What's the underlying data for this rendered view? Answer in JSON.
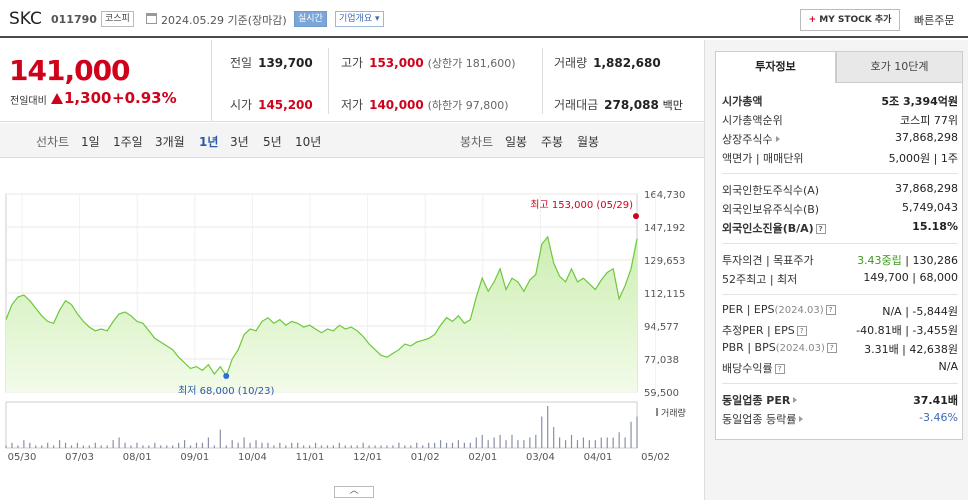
{
  "header": {
    "name": "SKC",
    "code": "011790",
    "market": "코스피",
    "date": "2024.05.29 기준(장마감)",
    "realtime": "실시간",
    "company_info": "기업개요",
    "my_stock": "MY STOCK 추가",
    "quick_order": "빠른주문"
  },
  "price": {
    "current": "141,000",
    "compare_label": "전일대비",
    "change": "1,300",
    "change_pct": "+0.93%"
  },
  "stats": {
    "prev_label": "전일",
    "prev": "139,700",
    "open_label": "시가",
    "open": "145,200",
    "high_label": "고가",
    "high": "153,000",
    "upper_limit": "(상한가 181,600)",
    "low_label": "저가",
    "low": "140,000",
    "lower_limit": "(하한가 97,800)",
    "volume_label": "거래량",
    "volume": "1,882,680",
    "amount_label": "거래대금",
    "amount": "278,088",
    "amount_unit": "백만"
  },
  "periods": {
    "line_label": "선차트",
    "line_items": [
      "1일",
      "1주일",
      "3개월",
      "1년",
      "3년",
      "5년",
      "10년"
    ],
    "active": "1년",
    "candle_label": "봉차트",
    "candle_items": [
      "일봉",
      "주봉",
      "월봉"
    ]
  },
  "chart_data": {
    "type": "area",
    "y_ticks": [
      "164,730",
      "147,192",
      "129,653",
      "112,115",
      "94,577",
      "77,038",
      "59,500"
    ],
    "ylim": [
      59500,
      164730
    ],
    "x_ticks": [
      "05/30",
      "07/03",
      "08/01",
      "09/01",
      "10/04",
      "11/01",
      "12/01",
      "01/02",
      "02/01",
      "03/04",
      "04/01",
      "05/02"
    ],
    "high_label": "최고 153,000 (05/29)",
    "low_label": "최저 68,000 (10/23)",
    "volume_label": "거래량",
    "values": [
      98000,
      106000,
      110000,
      111000,
      108000,
      104000,
      100000,
      97000,
      96000,
      103000,
      108000,
      106000,
      101000,
      97000,
      94000,
      92000,
      93000,
      92000,
      97000,
      101000,
      102000,
      100000,
      97000,
      96000,
      92000,
      88000,
      86000,
      84000,
      82000,
      78000,
      75000,
      72000,
      73000,
      71000,
      74000,
      69000,
      73000,
      68000,
      77000,
      82000,
      90000,
      93000,
      92000,
      97000,
      99000,
      96000,
      98000,
      95000,
      97000,
      96000,
      94000,
      95000,
      93000,
      91000,
      93000,
      92000,
      95000,
      93000,
      94000,
      92000,
      89000,
      85000,
      82000,
      79000,
      78000,
      80000,
      82000,
      85000,
      84000,
      86000,
      87000,
      88000,
      90000,
      95000,
      99000,
      97000,
      100000,
      96000,
      98000,
      110000,
      120000,
      113000,
      118000,
      125000,
      114000,
      120000,
      118000,
      113000,
      119000,
      122000,
      138000,
      142000,
      128000,
      121000,
      118000,
      125000,
      118000,
      120000,
      117000,
      114000,
      119000,
      123000,
      125000,
      109000,
      116000,
      125000,
      141000
    ],
    "volumes": [
      1,
      2,
      1,
      3,
      2,
      1,
      1,
      2,
      1,
      3,
      2,
      1,
      2,
      1,
      1,
      2,
      1,
      1,
      3,
      4,
      2,
      1,
      2,
      1,
      1,
      2,
      1,
      1,
      1,
      2,
      3,
      1,
      2,
      2,
      4,
      1,
      7,
      1,
      3,
      2,
      4,
      2,
      3,
      2,
      2,
      1,
      2,
      1,
      2,
      2,
      1,
      1,
      2,
      1,
      1,
      1,
      2,
      1,
      1,
      1,
      2,
      1,
      1,
      1,
      1,
      1,
      2,
      1,
      1,
      2,
      1,
      2,
      2,
      3,
      2,
      2,
      3,
      2,
      2,
      4,
      5,
      3,
      4,
      5,
      3,
      5,
      3,
      3,
      4,
      5,
      12,
      16,
      8,
      4,
      3,
      5,
      3,
      4,
      3,
      3,
      4,
      4,
      4,
      6,
      4,
      10,
      12
    ]
  },
  "side": {
    "tab_active": "투자정보",
    "tab_other": "호가 10단계",
    "market_cap_label": "시가총액",
    "market_cap": "5조 3,394억원",
    "cap_rank_label": "시가총액순위",
    "cap_rank": "코스피 77위",
    "shares_label": "상장주식수",
    "shares": "37,868,298",
    "par_label": "액면가 | 매매단위",
    "par": "5,000원 | 1주",
    "foreign_limit_label": "외국인한도주식수(A)",
    "foreign_limit": "37,868,298",
    "foreign_hold_label": "외국인보유주식수(B)",
    "foreign_hold": "5,749,043",
    "foreign_ratio_label": "외국인소진율(B/A)",
    "foreign_ratio": "15.18%",
    "opinion_label": "투자의견 | 목표주가",
    "opinion": "3.43중립",
    "target": "130,286",
    "week52_label": "52주최고 | 최저",
    "week52": "149,700 | 68,000",
    "per_label": "PER | EPS",
    "per_date": "(2024.03)",
    "per": "N/A | -5,844원",
    "est_per_label": "추정PER | EPS",
    "est_per": "-40.81배 | -3,455원",
    "pbr_label": "PBR | BPS",
    "pbr_date": "(2024.03)",
    "pbr": "3.31배 | 42,638원",
    "dividend_label": "배당수익률",
    "dividend": "N/A",
    "sector_per_label": "동일업종 PER",
    "sector_per": "37.41배",
    "sector_change_label": "동일업종 등락률",
    "sector_change": "-3.46%"
  }
}
